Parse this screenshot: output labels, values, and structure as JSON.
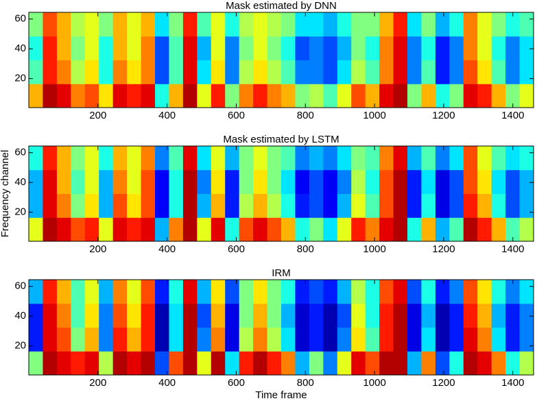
{
  "chart_data": [
    {
      "type": "heatmap",
      "title": "Mask estimated by DNN",
      "colormap": "jet",
      "clim": [
        0,
        1
      ],
      "xlim": [
        0,
        1460
      ],
      "ylim": [
        0.5,
        64.5
      ],
      "xticks": [
        200,
        400,
        600,
        800,
        1000,
        1200,
        1400
      ],
      "yticks": [
        20,
        40,
        60
      ],
      "z": [
        [
          0.7,
          0.95,
          0.9,
          0.75,
          0.8,
          0.65,
          0.9,
          0.85,
          0.9,
          0.4,
          0.7,
          0.95,
          0.6,
          0.85,
          0.5,
          0.75,
          0.85,
          0.75,
          0.7,
          0.5,
          0.55,
          0.45,
          0.6,
          0.8,
          0.7,
          0.9,
          0.95,
          0.5,
          0.7,
          0.4,
          0.5,
          0.9,
          0.85,
          0.7,
          0.5,
          0.6
        ],
        [
          0.45,
          0.85,
          0.75,
          0.55,
          0.65,
          0.4,
          0.75,
          0.65,
          0.75,
          0.2,
          0.45,
          0.9,
          0.35,
          0.65,
          0.25,
          0.55,
          0.65,
          0.55,
          0.45,
          0.25,
          0.25,
          0.2,
          0.35,
          0.55,
          0.45,
          0.75,
          0.9,
          0.25,
          0.45,
          0.15,
          0.25,
          0.8,
          0.65,
          0.45,
          0.25,
          0.35
        ],
        [
          0.4,
          0.85,
          0.7,
          0.5,
          0.6,
          0.4,
          0.7,
          0.6,
          0.75,
          0.2,
          0.45,
          0.9,
          0.3,
          0.6,
          0.25,
          0.5,
          0.6,
          0.5,
          0.4,
          0.2,
          0.25,
          0.2,
          0.3,
          0.5,
          0.4,
          0.75,
          0.9,
          0.25,
          0.4,
          0.15,
          0.25,
          0.75,
          0.6,
          0.4,
          0.25,
          0.35
        ],
        [
          0.5,
          0.8,
          0.7,
          0.55,
          0.6,
          0.5,
          0.7,
          0.6,
          0.7,
          0.35,
          0.5,
          0.85,
          0.45,
          0.6,
          0.4,
          0.55,
          0.6,
          0.55,
          0.5,
          0.35,
          0.35,
          0.3,
          0.4,
          0.5,
          0.5,
          0.7,
          0.85,
          0.35,
          0.5,
          0.3,
          0.4,
          0.75,
          0.6,
          0.5,
          0.4,
          0.45
        ]
      ]
    },
    {
      "type": "heatmap",
      "title": "Mask estimated by LSTM",
      "ylabel": "Frequency channel",
      "colormap": "jet",
      "clim": [
        0,
        1
      ],
      "xlim": [
        0,
        1460
      ],
      "ylim": [
        0.5,
        64.5
      ],
      "xticks": [
        200,
        400,
        600,
        800,
        1000,
        1200,
        1400
      ],
      "yticks": [
        20,
        40,
        60
      ],
      "z": [
        [
          0.6,
          0.95,
          0.9,
          0.8,
          0.85,
          0.6,
          0.9,
          0.85,
          0.9,
          0.3,
          0.75,
          0.95,
          0.6,
          0.9,
          0.4,
          0.8,
          0.9,
          0.8,
          0.7,
          0.4,
          0.5,
          0.35,
          0.6,
          0.85,
          0.75,
          0.9,
          0.95,
          0.4,
          0.7,
          0.3,
          0.45,
          0.95,
          0.85,
          0.7,
          0.45,
          0.55
        ],
        [
          0.3,
          0.9,
          0.75,
          0.5,
          0.65,
          0.3,
          0.8,
          0.65,
          0.8,
          0.12,
          0.4,
          0.95,
          0.3,
          0.7,
          0.15,
          0.55,
          0.7,
          0.55,
          0.4,
          0.15,
          0.2,
          0.12,
          0.3,
          0.6,
          0.45,
          0.8,
          0.95,
          0.15,
          0.4,
          0.1,
          0.2,
          0.85,
          0.7,
          0.4,
          0.2,
          0.3
        ],
        [
          0.3,
          0.9,
          0.7,
          0.45,
          0.6,
          0.3,
          0.75,
          0.6,
          0.8,
          0.12,
          0.4,
          0.95,
          0.25,
          0.65,
          0.15,
          0.5,
          0.65,
          0.5,
          0.35,
          0.12,
          0.2,
          0.12,
          0.25,
          0.55,
          0.4,
          0.8,
          0.95,
          0.15,
          0.35,
          0.1,
          0.2,
          0.8,
          0.65,
          0.35,
          0.2,
          0.3
        ],
        [
          0.4,
          0.85,
          0.7,
          0.5,
          0.6,
          0.4,
          0.7,
          0.6,
          0.75,
          0.25,
          0.45,
          0.9,
          0.35,
          0.6,
          0.3,
          0.5,
          0.6,
          0.5,
          0.45,
          0.25,
          0.3,
          0.25,
          0.35,
          0.5,
          0.45,
          0.75,
          0.9,
          0.3,
          0.45,
          0.25,
          0.35,
          0.8,
          0.6,
          0.45,
          0.35,
          0.4
        ]
      ]
    },
    {
      "type": "heatmap",
      "title": "IRM",
      "xlabel": "Time frame",
      "colormap": "jet",
      "clim": [
        0,
        1
      ],
      "xlim": [
        0,
        1460
      ],
      "ylim": [
        0.5,
        64.5
      ],
      "xticks": [
        200,
        400,
        600,
        800,
        1000,
        1200,
        1400
      ],
      "yticks": [
        20,
        40,
        60
      ],
      "z": [
        [
          0.5,
          0.95,
          0.9,
          0.85,
          0.9,
          0.55,
          0.95,
          0.9,
          0.95,
          0.2,
          0.8,
          0.95,
          0.6,
          0.95,
          0.35,
          0.85,
          0.95,
          0.85,
          0.75,
          0.3,
          0.5,
          0.25,
          0.6,
          0.9,
          0.8,
          0.95,
          0.95,
          0.3,
          0.75,
          0.2,
          0.4,
          0.95,
          0.9,
          0.75,
          0.4,
          0.55
        ],
        [
          0.15,
          0.9,
          0.8,
          0.5,
          0.7,
          0.25,
          0.85,
          0.7,
          0.85,
          0.05,
          0.35,
          0.95,
          0.25,
          0.75,
          0.1,
          0.55,
          0.75,
          0.55,
          0.35,
          0.08,
          0.15,
          0.05,
          0.25,
          0.65,
          0.45,
          0.85,
          0.95,
          0.1,
          0.35,
          0.05,
          0.15,
          0.9,
          0.75,
          0.35,
          0.15,
          0.25
        ],
        [
          0.15,
          0.9,
          0.75,
          0.45,
          0.65,
          0.25,
          0.8,
          0.65,
          0.85,
          0.05,
          0.35,
          0.95,
          0.2,
          0.7,
          0.1,
          0.5,
          0.7,
          0.5,
          0.3,
          0.08,
          0.15,
          0.05,
          0.2,
          0.6,
          0.4,
          0.85,
          0.95,
          0.1,
          0.3,
          0.05,
          0.15,
          0.85,
          0.7,
          0.3,
          0.15,
          0.25
        ],
        [
          0.3,
          0.85,
          0.7,
          0.45,
          0.6,
          0.3,
          0.75,
          0.6,
          0.8,
          0.15,
          0.4,
          0.9,
          0.3,
          0.65,
          0.2,
          0.5,
          0.65,
          0.5,
          0.4,
          0.15,
          0.2,
          0.15,
          0.3,
          0.55,
          0.4,
          0.8,
          0.9,
          0.2,
          0.4,
          0.15,
          0.25,
          0.8,
          0.65,
          0.4,
          0.25,
          0.35
        ]
      ]
    }
  ]
}
